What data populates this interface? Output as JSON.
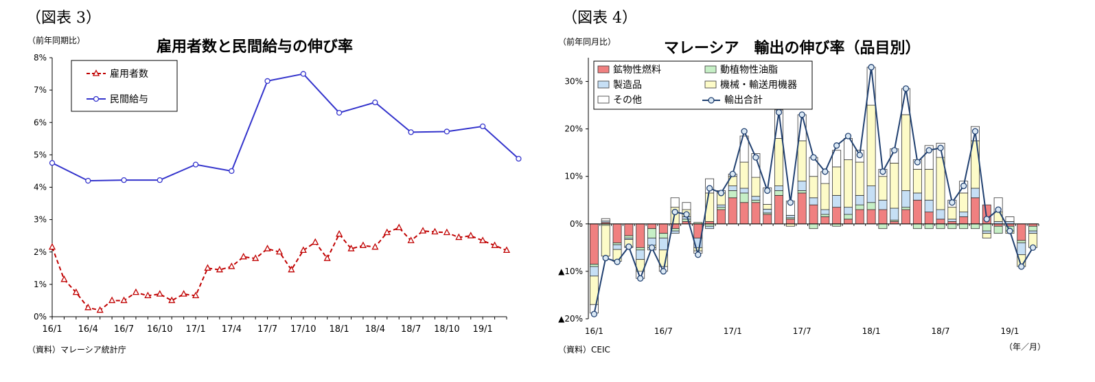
{
  "panel1": {
    "fig_label": "（図表 3）",
    "unit": "（前年同期比）",
    "source": "（資料）マレーシア統計庁",
    "chart_data": {
      "type": "line",
      "title": "雇用者数と民間給与の伸び率",
      "ylim": [
        0,
        8
      ],
      "yticks": [
        "0%",
        "1%",
        "2%",
        "3%",
        "4%",
        "5%",
        "6%",
        "7%",
        "8%"
      ],
      "xticks": [
        {
          "label": "16/1",
          "x": 0
        },
        {
          "label": "16/4",
          "x": 3
        },
        {
          "label": "16/7",
          "x": 6
        },
        {
          "label": "16/10",
          "x": 9
        },
        {
          "label": "17/1",
          "x": 12
        },
        {
          "label": "17/4",
          "x": 15
        },
        {
          "label": "17/7",
          "x": 18
        },
        {
          "label": "17/10",
          "x": 21
        },
        {
          "label": "18/1",
          "x": 24
        },
        {
          "label": "18/4",
          "x": 27
        },
        {
          "label": "18/7",
          "x": 30
        },
        {
          "label": "18/10",
          "x": 33
        },
        {
          "label": "19/1",
          "x": 36
        }
      ],
      "x_count": 39,
      "legend_position": "top-left",
      "series": [
        {
          "name": "雇用者数",
          "color": "#c00000",
          "style": "dashed",
          "marker": "triangle",
          "x": [
            0,
            1,
            2,
            3,
            4,
            5,
            6,
            7,
            8,
            9,
            10,
            11,
            12,
            13,
            14,
            15,
            16,
            17,
            18,
            19,
            20,
            21,
            22,
            23,
            24,
            25,
            26,
            27,
            28,
            29,
            30,
            31,
            32,
            33,
            34,
            35,
            36,
            37,
            38
          ],
          "values": [
            2.15,
            1.15,
            0.75,
            0.28,
            0.2,
            0.5,
            0.5,
            0.75,
            0.65,
            0.7,
            0.5,
            0.7,
            0.65,
            1.5,
            1.45,
            1.55,
            1.85,
            1.8,
            2.1,
            2.0,
            1.45,
            2.05,
            2.3,
            1.8,
            2.55,
            2.1,
            2.2,
            2.15,
            2.6,
            2.75,
            2.35,
            2.65,
            2.62,
            2.6,
            2.45,
            2.5,
            2.35,
            2.2,
            2.05
          ]
        },
        {
          "name": "民間給与",
          "color": "#3333cc",
          "style": "solid",
          "marker": "circle",
          "x": [
            0,
            3,
            6,
            9,
            12,
            15,
            18,
            21,
            24,
            27,
            30,
            33,
            36,
            39
          ],
          "values": [
            4.75,
            4.2,
            4.22,
            4.22,
            4.7,
            4.5,
            7.28,
            7.5,
            6.3,
            6.62,
            5.7,
            5.72,
            5.88,
            4.88
          ]
        }
      ]
    }
  },
  "panel2": {
    "fig_label": "（図表 4）",
    "unit": "（前年同月比）",
    "source": "（資料）CEIC",
    "x_unit": "（年／月）",
    "chart_data": {
      "type": "bar",
      "stacked": true,
      "title": "マレーシア　輸出の伸び率（品目別）",
      "ylim": [
        -20,
        35
      ],
      "yticks": [
        {
          "v": 30,
          "label": "30%"
        },
        {
          "v": 20,
          "label": "20%"
        },
        {
          "v": 10,
          "label": "10%"
        },
        {
          "v": 0,
          "label": "0%"
        },
        {
          "v": -10,
          "label": "▲10%"
        },
        {
          "v": -20,
          "label": "▲20%"
        }
      ],
      "xticks": [
        {
          "label": "16/1",
          "i": 0
        },
        {
          "label": "16/7",
          "i": 6
        },
        {
          "label": "17/1",
          "i": 12
        },
        {
          "label": "17/7",
          "i": 18
        },
        {
          "label": "18/1",
          "i": 24
        },
        {
          "label": "18/7",
          "i": 30
        },
        {
          "label": "19/1",
          "i": 36
        }
      ],
      "legend_position": "top-left",
      "components": [
        {
          "name": "鉱物性燃料",
          "color": "#f08080"
        },
        {
          "name": "動植物性油脂",
          "color": "#c6efc6"
        },
        {
          "name": "製造品",
          "color": "#c6dff5"
        },
        {
          "name": "機械・輸送用機器",
          "color": "#fdfbc8"
        },
        {
          "name": "その他",
          "color": "#ffffff"
        }
      ],
      "total_series": {
        "name": "輸出合計",
        "color": "#1f3f6f"
      },
      "months": [
        {
          "fuel": -8.5,
          "oil": -0.5,
          "mfg": -2.0,
          "mach": -6.0,
          "oth": -1.8,
          "total": -19.0
        },
        {
          "fuel": 0.3,
          "oil": -0.3,
          "mfg": 0.3,
          "mach": -6.5,
          "oth": 0.5,
          "total": -7.2
        },
        {
          "fuel": -4.0,
          "oil": -0.4,
          "mfg": -1.0,
          "mach": -2.5,
          "oth": 0.0,
          "total": -8.0
        },
        {
          "fuel": -2.5,
          "oil": -0.5,
          "mfg": -0.3,
          "mach": -1.5,
          "oth": -0.2,
          "total": -4.8
        },
        {
          "fuel": -5.0,
          "oil": -0.5,
          "mfg": -2.0,
          "mach": -2.5,
          "oth": -1.5,
          "total": -11.5
        },
        {
          "fuel": -1.0,
          "oil": -2.0,
          "mfg": -1.5,
          "mach": -0.5,
          "oth": -0.5,
          "total": -5.0
        },
        {
          "fuel": -2.0,
          "oil": -1.0,
          "mfg": -2.5,
          "mach": -3.5,
          "oth": -1.0,
          "total": -10.0
        },
        {
          "fuel": -1.0,
          "oil": -0.5,
          "mfg": -0.5,
          "mach": 3.5,
          "oth": 2.0,
          "total": 2.5
        },
        {
          "fuel": 0.5,
          "oil": 0.5,
          "mfg": 0.5,
          "mach": 1.5,
          "oth": 1.5,
          "total": 2.0
        },
        {
          "fuel": -3.0,
          "oil": 0.3,
          "mfg": -2.0,
          "mach": -0.7,
          "oth": -0.5,
          "total": -6.5
        },
        {
          "fuel": 0.5,
          "oil": -0.5,
          "mfg": -0.5,
          "mach": 6.0,
          "oth": 3.0,
          "total": 7.5
        },
        {
          "fuel": 3.0,
          "oil": 0.5,
          "mfg": 0.5,
          "mach": 2.5,
          "oth": 0.5,
          "total": 6.5
        },
        {
          "fuel": 5.5,
          "oil": 1.5,
          "mfg": 1.0,
          "mach": 2.0,
          "oth": 0.5,
          "total": 10.5
        },
        {
          "fuel": 4.5,
          "oil": 2.0,
          "mfg": 1.0,
          "mach": 5.5,
          "oth": 5.5,
          "total": 19.5
        },
        {
          "fuel": 4.5,
          "oil": 0.5,
          "mfg": 0.8,
          "mach": 4.0,
          "oth": 5.0,
          "total": 14.0
        },
        {
          "fuel": 2.0,
          "oil": 0.3,
          "mfg": 0.8,
          "mach": 1.0,
          "oth": 3.5,
          "total": 7.0
        },
        {
          "fuel": 6.0,
          "oil": 1.0,
          "mfg": 1.0,
          "mach": 10.0,
          "oth": 6.0,
          "total": 23.5
        },
        {
          "fuel": 1.0,
          "oil": 0.3,
          "mfg": 0.5,
          "mach": -0.5,
          "oth": 3.0,
          "total": 4.5
        },
        {
          "fuel": 6.5,
          "oil": 0.5,
          "mfg": 2.0,
          "mach": 8.5,
          "oth": 5.5,
          "total": 23.0
        },
        {
          "fuel": 4.0,
          "oil": -1.0,
          "mfg": 1.5,
          "mach": 4.5,
          "oth": 4.0,
          "total": 14.0
        },
        {
          "fuel": 1.5,
          "oil": 0.5,
          "mfg": 1.0,
          "mach": 5.5,
          "oth": 2.5,
          "total": 11.0
        },
        {
          "fuel": 3.5,
          "oil": -0.5,
          "mfg": 2.5,
          "mach": 6.0,
          "oth": 3.5,
          "total": 16.5
        },
        {
          "fuel": 1.0,
          "oil": 1.0,
          "mfg": 1.5,
          "mach": 10.0,
          "oth": 4.5,
          "total": 18.5
        },
        {
          "fuel": 3.0,
          "oil": 1.0,
          "mfg": 2.0,
          "mach": 7.0,
          "oth": 2.5,
          "total": 14.5
        },
        {
          "fuel": 3.0,
          "oil": 1.5,
          "mfg": 3.5,
          "mach": 17.0,
          "oth": 8.0,
          "total": 33.0
        },
        {
          "fuel": 3.0,
          "oil": -1.0,
          "mfg": 2.0,
          "mach": 5.0,
          "oth": 1.5,
          "total": 11.0
        },
        {
          "fuel": 0.5,
          "oil": 0.3,
          "mfg": 2.5,
          "mach": 9.5,
          "oth": 3.0,
          "total": 15.5
        },
        {
          "fuel": 3.0,
          "oil": 0.5,
          "mfg": 3.5,
          "mach": 16.0,
          "oth": 5.5,
          "total": 28.5
        },
        {
          "fuel": 5.0,
          "oil": -1.0,
          "mfg": 1.5,
          "mach": 5.0,
          "oth": 2.0,
          "total": 13.0
        },
        {
          "fuel": 2.5,
          "oil": -1.0,
          "mfg": 2.5,
          "mach": 6.5,
          "oth": 5.0,
          "total": 15.5
        },
        {
          "fuel": 1.0,
          "oil": -1.0,
          "mfg": 2.0,
          "mach": 11.0,
          "oth": 3.0,
          "total": 16.0
        },
        {
          "fuel": 0.5,
          "oil": -1.0,
          "mfg": 0.5,
          "mach": 2.5,
          "oth": 1.5,
          "total": 4.5
        },
        {
          "fuel": 1.5,
          "oil": -1.0,
          "mfg": 1.0,
          "mach": 4.0,
          "oth": 2.5,
          "total": 8.0
        },
        {
          "fuel": 5.5,
          "oil": -1.0,
          "mfg": 2.0,
          "mach": 10.0,
          "oth": 3.0,
          "total": 19.5
        },
        {
          "fuel": 4.0,
          "oil": -1.5,
          "mfg": -0.5,
          "mach": -1.0,
          "oth": 0.0,
          "total": 1.0
        },
        {
          "fuel": -0.5,
          "oil": -1.5,
          "mfg": 0.5,
          "mach": 2.0,
          "oth": 3.0,
          "total": 3.0
        },
        {
          "fuel": -0.5,
          "oil": -1.0,
          "mfg": 0.5,
          "mach": -0.5,
          "oth": 1.0,
          "total": -1.5
        },
        {
          "fuel": -3.5,
          "oil": -0.5,
          "mfg": -2.5,
          "mach": -2.5,
          "oth": 0.0,
          "total": -9.0
        },
        {
          "fuel": -0.5,
          "oil": -1.0,
          "mfg": -0.5,
          "mach": -3.0,
          "oth": 0.0,
          "total": -5.0
        }
      ]
    }
  }
}
